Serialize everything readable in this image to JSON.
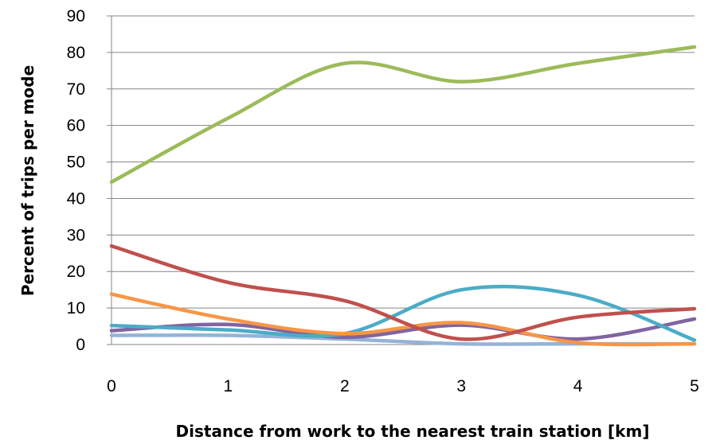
{
  "chart_data": {
    "type": "line",
    "title": "",
    "xlabel": "Distance  from work to the nearest train station [km]",
    "ylabel": "Percent of trips per mode",
    "x": [
      0,
      1,
      2,
      3,
      4,
      5
    ],
    "xticks": [
      "0",
      "1",
      "2",
      "3",
      "4",
      "5"
    ],
    "yticks": [
      "0",
      "10",
      "20",
      "30",
      "40",
      "50",
      "60",
      "70",
      "80",
      "90"
    ],
    "xlim": [
      0,
      5
    ],
    "ylim": [
      0,
      90
    ],
    "grid": true,
    "smooth": true,
    "series": [
      {
        "color": "#9bbb59",
        "values": [
          44.5,
          62,
          77,
          72,
          77,
          81.5
        ]
      },
      {
        "color": "#c0504d",
        "values": [
          27,
          17,
          12,
          1.5,
          7.5,
          9.8
        ]
      },
      {
        "color": "#f79646",
        "values": [
          13.8,
          7,
          3,
          6,
          0.5,
          0.2
        ]
      },
      {
        "color": "#4bacc6",
        "values": [
          5.2,
          4,
          3,
          15,
          13.5,
          1.2
        ]
      },
      {
        "color": "#8064a2",
        "values": [
          3.8,
          5.5,
          2,
          5.3,
          1.5,
          7
        ]
      },
      {
        "color": "#95b3d7",
        "values": [
          2.5,
          2.5,
          1.5,
          0.2,
          0.2,
          0.2
        ]
      }
    ]
  }
}
